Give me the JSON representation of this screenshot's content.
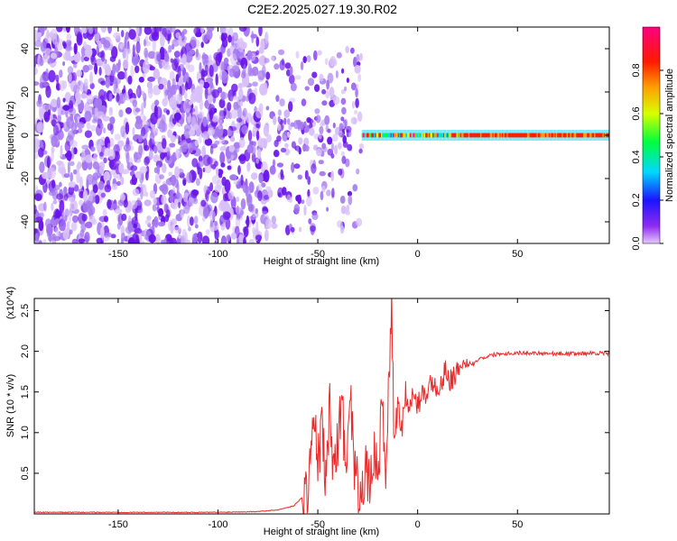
{
  "title": "C2E2.2025.027.19.30.R02",
  "colors": {
    "snr_line": "#e82a2a",
    "points_light": "#d8c0f8",
    "points_mid": "#a57af0",
    "points_dark": "#6a14ea"
  },
  "chart_data": [
    {
      "type": "heatmap",
      "xlabel": "Height of straight line (km)",
      "ylabel": "Frequency (Hz)",
      "xlim": [
        -192,
        96
      ],
      "ylim": [
        -50,
        50
      ],
      "xticks": [
        -150,
        -100,
        -50,
        0,
        50
      ],
      "yticks": [
        -40,
        -20,
        0,
        20,
        40
      ],
      "colorbar": {
        "label": "Normalized spectral amplitude",
        "range": [
          0.0,
          1.0
        ],
        "ticks": [
          "0.0",
          "0.2",
          "0.4",
          "0.6",
          "0.8"
        ],
        "colormap": "rainbow (magenta-blue-cyan-green-yellow-red-magenta)"
      },
      "regions": [
        {
          "x_range": [
            -192,
            -75
          ],
          "freq_range": [
            -50,
            50
          ],
          "amplitude_range": [
            0.0,
            0.12
          ],
          "pattern": "dense scattered noise"
        },
        {
          "x_range": [
            -75,
            -28
          ],
          "freq_range": [
            -45,
            40
          ],
          "amplitude_range": [
            0.0,
            0.25
          ],
          "pattern": "sparser noise with clusters near 0 Hz"
        },
        {
          "x_range": [
            -28,
            96
          ],
          "freq_range": [
            -2,
            2
          ],
          "amplitude_range": [
            0.3,
            1.0
          ],
          "pattern": "narrow band centred on 0 Hz"
        }
      ]
    },
    {
      "type": "line",
      "xlabel": "Height of straight line (km)",
      "ylabel": "SNR (10 * v/v)",
      "y_multiplier": "(x10^4)",
      "xlim": [
        -192,
        96
      ],
      "ylim": [
        0,
        2.65
      ],
      "xticks": [
        -150,
        -100,
        -50,
        0,
        50
      ],
      "yticks": [
        0.5,
        1.0,
        1.5,
        2.0,
        2.5
      ],
      "series": [
        {
          "x": [
            -192,
            -150,
            -100,
            -80,
            -70,
            -62,
            -58,
            -55,
            -52,
            -50,
            -48,
            -46,
            -44,
            -42,
            -40,
            -38,
            -36,
            -34,
            -32,
            -30,
            -28,
            -26,
            -24,
            -22,
            -20,
            -18,
            -16,
            -14,
            -13,
            -12,
            -10,
            -8,
            -6,
            -4,
            -2,
            0,
            2,
            4,
            6,
            8,
            10,
            12,
            14,
            16,
            18,
            20,
            22,
            24,
            26,
            28,
            30,
            35,
            40,
            50,
            60,
            70,
            80,
            90,
            96
          ],
          "y": [
            0.02,
            0.02,
            0.02,
            0.03,
            0.05,
            0.1,
            0.2,
            0.3,
            1.2,
            0.6,
            1.1,
            0.4,
            1.3,
            0.5,
            0.9,
            1.4,
            0.6,
            1.6,
            0.7,
            0.3,
            0.4,
            0.5,
            0.3,
            0.8,
            0.4,
            1.3,
            0.6,
            1.8,
            2.7,
            1.0,
            1.4,
            1.0,
            1.5,
            1.2,
            1.6,
            1.3,
            1.5,
            1.4,
            1.7,
            1.5,
            1.6,
            1.6,
            1.8,
            1.6,
            1.7,
            1.8,
            1.7,
            1.8,
            1.85,
            1.85,
            1.9,
            1.94,
            1.97,
            1.98,
            1.98,
            1.97,
            1.97,
            1.98,
            1.97
          ]
        }
      ]
    }
  ]
}
